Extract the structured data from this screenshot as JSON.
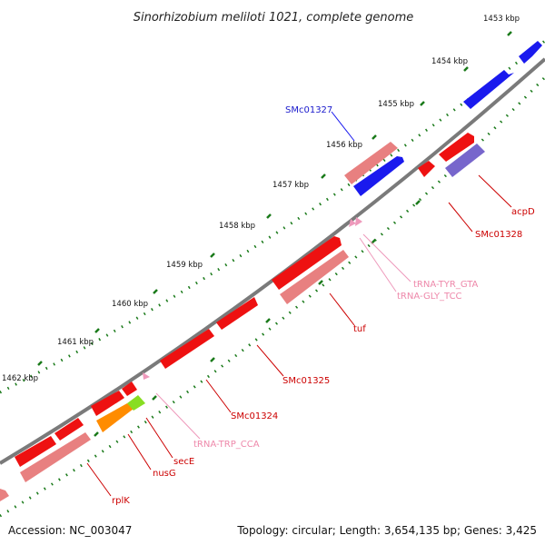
{
  "title": "Sinorhizobium meliloti 1021, complete genome",
  "footer": {
    "accession": "Accession: NC_003047",
    "summary": "Topology: circular; Length: 3,654,135 bp; Genes: 3,425"
  },
  "ticks": [
    "1453 kbp",
    "1454 kbp",
    "1455 kbp",
    "1456 kbp",
    "1457 kbp",
    "1458 kbp",
    "1459 kbp",
    "1460 kbp",
    "1461 kbp",
    "1462 kbp"
  ],
  "colors": {
    "backbone": "#7a7a7a",
    "dots": "#1a7a1a",
    "cds_red": "#ee1111",
    "cds_light": "#e88080",
    "cds_blue": "#1a1aee",
    "cds_purple": "#7766cc",
    "orange": "#ff8c00",
    "lime": "#88dd22",
    "trna": "#ee99bb"
  },
  "labels": [
    {
      "text": "SMc01327",
      "color": "#1a1acc"
    },
    {
      "text": "acpD",
      "color": "#cc0000"
    },
    {
      "text": "SMc01328",
      "color": "#cc0000"
    },
    {
      "text": "tRNA-TYR_GTA",
      "color": "#ee88aa"
    },
    {
      "text": "tRNA-GLY_TCC",
      "color": "#ee88aa"
    },
    {
      "text": "tuf",
      "color": "#cc0000"
    },
    {
      "text": "SMc01325",
      "color": "#cc0000"
    },
    {
      "text": "SMc01324",
      "color": "#cc0000"
    },
    {
      "text": "tRNA-TRP_CCA",
      "color": "#ee88aa"
    },
    {
      "text": "secE",
      "color": "#cc0000"
    },
    {
      "text": "nusG",
      "color": "#cc0000"
    },
    {
      "text": "rplK",
      "color": "#cc0000"
    }
  ]
}
